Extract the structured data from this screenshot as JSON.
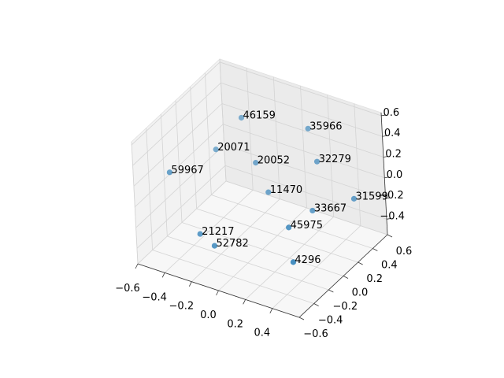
{
  "chart_data": {
    "type": "scatter3d",
    "x": [
      -0.29,
      0.07,
      -0.39,
      -0.17,
      0.16,
      -0.51,
      -0.08,
      0.39,
      0.2,
      0.2,
      -0.28,
      -0.17,
      0.32
    ],
    "y": [
      0.31,
      0.55,
      0.13,
      0.26,
      0.49,
      -0.28,
      0.25,
      0.55,
      0.33,
      0.01,
      -0.32,
      -0.33,
      -0.16
    ],
    "z": [
      0.39,
      0.28,
      0.16,
      0.04,
      0.04,
      0.16,
      -0.2,
      -0.26,
      -0.31,
      -0.26,
      -0.31,
      -0.37,
      -0.43
    ],
    "labels": [
      46159,
      35966,
      20071,
      20052,
      32279,
      59967,
      11470,
      31599,
      33667,
      45975,
      21217,
      52782,
      4296
    ],
    "color": "#1f77b4",
    "xlim": [
      -0.6,
      0.6
    ],
    "ylim": [
      -0.6,
      0.6
    ],
    "zlim": [
      -0.55,
      0.63
    ],
    "xticks": [
      {
        "value": -0.6,
        "label": "−0.6"
      },
      {
        "value": -0.4,
        "label": "−0.4"
      },
      {
        "value": -0.2,
        "label": "−0.2"
      },
      {
        "value": 0,
        "label": "0.0"
      },
      0.2,
      0.4
    ],
    "yticks": [
      {
        "value": -0.6,
        "label": "−0.6"
      },
      {
        "value": -0.4,
        "label": "−0.4"
      },
      {
        "value": -0.2,
        "label": "−0.2"
      },
      {
        "value": 0,
        "label": "0.0"
      },
      0.2,
      0.4,
      0.6
    ],
    "zticks": [
      {
        "value": -0.4,
        "label": "−0.4"
      },
      {
        "value": -0.2,
        "label": "−0.2"
      },
      {
        "value": 0,
        "label": "0.0"
      },
      0.2,
      0.4,
      0.6
    ],
    "grid": true
  }
}
